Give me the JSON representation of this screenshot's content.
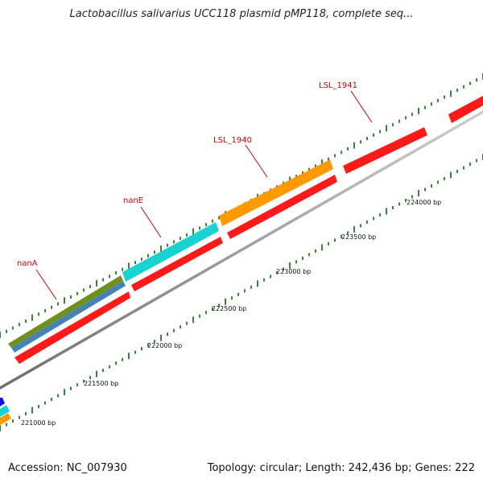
{
  "title": "Lactobacillus salivarius UCC118 plasmid pMP118, complete seq...",
  "footer": {
    "accession": "Accession: NC_007930",
    "summary": "Topology: circular; Length: 242,436 bp; Genes: 222"
  },
  "colors": {
    "backbone": "#8a8a8a",
    "tick": "#1f7a1f",
    "label": "#cc0000",
    "red": "#ff1a1a",
    "orange": "#ff9900",
    "cyan": "#19d3d3",
    "olive": "#6f8f1f",
    "steelblue": "#4682b4",
    "blue": "#1010dd"
  },
  "scale_labels": [
    "221000 bp",
    "221500 bp",
    "222000 bp",
    "222500 bp",
    "223000 bp",
    "223500 bp",
    "224000 bp"
  ],
  "gene_labels": [
    "nanA",
    "nanE",
    "LSL_1940",
    "LSL_1941"
  ]
}
